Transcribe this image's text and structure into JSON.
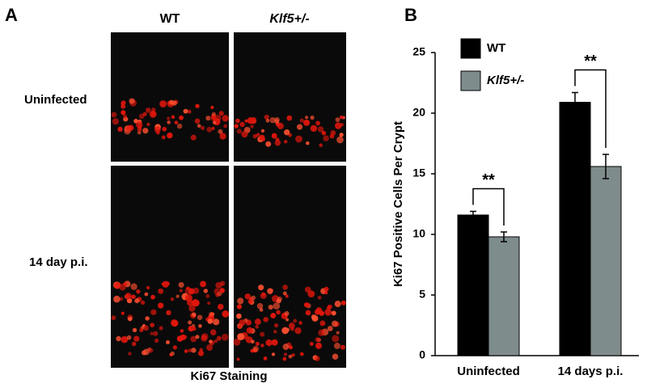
{
  "figure": {
    "panel_labels": [
      "A",
      "B"
    ]
  },
  "panel_a": {
    "columns": [
      "WT",
      "Klf5+/-"
    ],
    "rows": [
      "Uninfected",
      "14 day p.i."
    ],
    "caption": "Ki67 Staining"
  },
  "chart_data": {
    "type": "bar",
    "y_label": "Ki67 Positive Cells Per Crypt",
    "categories": [
      "Uninfected",
      "14 days p.i."
    ],
    "series": [
      {
        "name": "WT",
        "color": "#000000",
        "values": [
          11.6,
          20.9
        ],
        "errors": [
          0.3,
          0.8
        ]
      },
      {
        "name": "Klf5+/-",
        "color": "#7f8c8c",
        "values": [
          9.8,
          15.6
        ],
        "errors": [
          0.4,
          1.0
        ]
      }
    ],
    "ylim": [
      0,
      25
    ],
    "yticks": [
      0,
      5,
      10,
      15,
      20,
      25
    ],
    "annotations": [
      "**",
      "**"
    ],
    "legend": "top-left"
  }
}
